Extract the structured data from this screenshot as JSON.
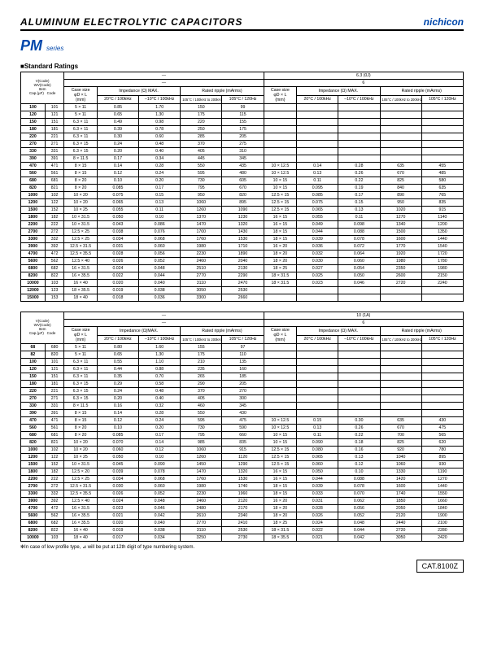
{
  "header": {
    "title": "ALUMINUM  ELECTROLYTIC  CAPACITORS",
    "brand": "nichicon",
    "series": "PM",
    "series_suffix": "series"
  },
  "section_title": "■Standard Ratings",
  "footnote": "✻In case of low profile type, ⊿ will be put at 12th digit of type numbering system.",
  "catnum": "CAT.8100Z",
  "col_headers": {
    "diag": [
      "V(Code)",
      "WV(Code)",
      "Item",
      "Cap.(µF)",
      "Code"
    ],
    "case": "Case size\nφD × L\n(mm)",
    "imp": "Impedance (Ω) MAX.",
    "imp2": "Impedance (Ω)MAX.",
    "rip": "Rated ripple (mArms)",
    "t20": "20°C / 100kHz",
    "tm10": "–10°C / 100kHz",
    "rip1": "105°C / 100kHz to 200kHz",
    "rip2": "105°C / 120Hz",
    "voltage1": "6.3 (0J)",
    "voltage2": "10 (1A)",
    "dash": "—",
    "six": "6"
  },
  "table1": {
    "rows": [
      {
        "cap": "100",
        "code": "101",
        "case": "5 × 11",
        "a1": "0.85",
        "a2": "1.70",
        "a3": "150",
        "a4": "99",
        "case2": "",
        "b1": "",
        "b2": "",
        "b3": "",
        "b4": ""
      },
      {
        "cap": "120",
        "code": "121",
        "case": "5 × 11",
        "a1": "0.65",
        "a2": "1.30",
        "a3": "175",
        "a4": "115",
        "case2": "",
        "b1": "",
        "b2": "",
        "b3": "",
        "b4": ""
      },
      {
        "cap": "150",
        "code": "151",
        "case": "6.3 × 11",
        "a1": "0.49",
        "a2": "0.98",
        "a3": "220",
        "a4": "155",
        "case2": "",
        "b1": "",
        "b2": "",
        "b3": "",
        "b4": ""
      },
      {
        "cap": "180",
        "code": "181",
        "case": "6.3 × 11",
        "a1": "0.39",
        "a2": "0.78",
        "a3": "250",
        "a4": "175",
        "case2": "",
        "b1": "",
        "b2": "",
        "b3": "",
        "b4": ""
      },
      {
        "cap": "220",
        "code": "221",
        "case": "6.3 × 11",
        "a1": "0.30",
        "a2": "0.60",
        "a3": "285",
        "a4": "205",
        "case2": "",
        "b1": "",
        "b2": "",
        "b3": "",
        "b4": ""
      },
      {
        "cap": "270",
        "code": "271",
        "case": "6.3 × 15",
        "a1": "0.24",
        "a2": "0.48",
        "a3": "370",
        "a4": "275",
        "case2": "",
        "b1": "",
        "b2": "",
        "b3": "",
        "b4": ""
      },
      {
        "cap": "330",
        "code": "331",
        "case": "6.3 × 15",
        "a1": "0.20",
        "a2": "0.40",
        "a3": "405",
        "a4": "310",
        "case2": "",
        "b1": "",
        "b2": "",
        "b3": "",
        "b4": ""
      },
      {
        "cap": "390",
        "code": "391",
        "case": "8 × 11.5",
        "a1": "0.17",
        "a2": "0.34",
        "a3": "445",
        "a4": "345",
        "case2": "",
        "b1": "",
        "b2": "",
        "b3": "",
        "b4": ""
      },
      {
        "cap": "470",
        "code": "471",
        "case": "8 × 15",
        "a1": "0.14",
        "a2": "0.28",
        "a3": "550",
        "a4": "435",
        "case2": "10 × 12.5",
        "b1": "0.14",
        "b2": "0.28",
        "b3": "635",
        "b4": "455"
      },
      {
        "cap": "560",
        "code": "561",
        "case": "8 × 15",
        "a1": "0.12",
        "a2": "0.24",
        "a3": "595",
        "a4": "480",
        "case2": "10 × 12.5",
        "b1": "0.13",
        "b2": "0.26",
        "b3": "670",
        "b4": "485"
      },
      {
        "cap": "680",
        "code": "681",
        "case": "8 × 20",
        "a1": "0.10",
        "a2": "0.20",
        "a3": "730",
        "a4": "605",
        "case2": "10 × 15",
        "b1": "0.11",
        "b2": "0.22",
        "b3": "825",
        "b4": "580"
      },
      {
        "cap": "820",
        "code": "821",
        "case": "8 × 20",
        "a1": "0.085",
        "a2": "0.17",
        "a3": "795",
        "a4": "670",
        "case2": "10 × 15",
        "b1": "0.095",
        "b2": "0.19",
        "b3": "840",
        "b4": "635"
      },
      {
        "cap": "1000",
        "code": "102",
        "case": "10 × 20",
        "a1": "0.075",
        "a2": "0.15",
        "a3": "950",
        "a4": "820",
        "case2": "12.5 × 15",
        "b1": "0.085",
        "b2": "0.17",
        "b3": "890",
        "b4": "765"
      },
      {
        "cap": "1200",
        "code": "122",
        "case": "10 × 20",
        "a1": "0.065",
        "a2": "0.13",
        "a3": "1060",
        "a4": "895",
        "case2": "12.5 × 15",
        "b1": "0.075",
        "b2": "0.15",
        "b3": "950",
        "b4": "835"
      },
      {
        "cap": "1500",
        "code": "152",
        "case": "10 × 25",
        "a1": "0.055",
        "a2": "0.11",
        "a3": "1260",
        "a4": "1090",
        "case2": "12.5 × 15",
        "b1": "0.065",
        "b2": "0.13",
        "b3": "1020",
        "b4": "915"
      },
      {
        "cap": "1800",
        "code": "182",
        "case": "10 × 31.5",
        "a1": "0.050",
        "a2": "0.10",
        "a3": "1370",
        "a4": "1230",
        "case2": "16 × 15",
        "b1": "0.055",
        "b2": "0.11",
        "b3": "1270",
        "b4": "1140"
      },
      {
        "cap": "2200",
        "code": "222",
        "case": "10 × 31.5",
        "a1": "0.043",
        "a2": "0.086",
        "a3": "1470",
        "a4": "1320",
        "case2": "16 × 15",
        "b1": "0.049",
        "b2": "0.098",
        "b3": "1340",
        "b4": "1200"
      },
      {
        "cap": "2700",
        "code": "272",
        "case": "12.5 × 25",
        "a1": "0.038",
        "a2": "0.076",
        "a3": "1700",
        "a4": "1430",
        "case2": "18 × 15",
        "b1": "0.044",
        "b2": "0.088",
        "b3": "1500",
        "b4": "1350"
      },
      {
        "cap": "3300",
        "code": "332",
        "case": "12.5 × 25",
        "a1": "0.034",
        "a2": "0.068",
        "a3": "1760",
        "a4": "1530",
        "case2": "18 × 15",
        "b1": "0.039",
        "b2": "0.078",
        "b3": "1600",
        "b4": "1440"
      },
      {
        "cap": "3900",
        "code": "392",
        "case": "12.5 × 31.5",
        "a1": "0.031",
        "a2": "0.060",
        "a3": "1980",
        "a4": "1710",
        "case2": "16 × 20",
        "b1": "0.036",
        "b2": "0.072",
        "b3": "1770",
        "b4": "1540"
      },
      {
        "cap": "4700",
        "code": "472",
        "case": "12.5 × 35.5",
        "a1": "0.028",
        "a2": "0.056",
        "a3": "2230",
        "a4": "1890",
        "case2": "18 × 20",
        "b1": "0.032",
        "b2": "0.064",
        "b3": "1920",
        "b4": "1720"
      },
      {
        "cap": "5600",
        "code": "562",
        "case": "12.5 × 40",
        "a1": "0.026",
        "a2": "0.052",
        "a3": "2460",
        "a4": "2040",
        "case2": "18 × 20",
        "b1": "0.030",
        "b2": "0.060",
        "b3": "1980",
        "b4": "1780"
      },
      {
        "cap": "6800",
        "code": "682",
        "case": "16 × 31.5",
        "a1": "0.024",
        "a2": "0.048",
        "a3": "2510",
        "a4": "2130",
        "case2": "18 × 25",
        "b1": "0.027",
        "b2": "0.054",
        "b3": "2350",
        "b4": "1980"
      },
      {
        "cap": "8200",
        "code": "822",
        "case": "16 × 35.5",
        "a1": "0.022",
        "a2": "0.044",
        "a3": "2770",
        "a4": "2290",
        "case2": "18 × 31.5",
        "b1": "0.025",
        "b2": "0.050",
        "b3": "2600",
        "b4": "2150"
      },
      {
        "cap": "10000",
        "code": "103",
        "case": "16 × 40",
        "a1": "0.020",
        "a2": "0.040",
        "a3": "3110",
        "a4": "2470",
        "case2": "18 × 31.5",
        "b1": "0.023",
        "b2": "0.046",
        "b3": "2720",
        "b4": "2240"
      },
      {
        "cap": "12000",
        "code": "123",
        "case": "18 × 35.5",
        "a1": "0.019",
        "a2": "0.038",
        "a3": "3050",
        "a4": "2530",
        "case2": "",
        "b1": "",
        "b2": "",
        "b3": "",
        "b4": ""
      },
      {
        "cap": "15000",
        "code": "153",
        "case": "18 × 40",
        "a1": "0.018",
        "a2": "0.036",
        "a3": "3300",
        "a4": "2660",
        "case2": "",
        "b1": "",
        "b2": "",
        "b3": "",
        "b4": ""
      }
    ]
  },
  "table2": {
    "rows": [
      {
        "cap": "68",
        "code": "680",
        "case": "5 × 11",
        "a1": "0.80",
        "a2": "1.60",
        "a3": "155",
        "a4": "97",
        "case2": "",
        "b1": "",
        "b2": "",
        "b3": "",
        "b4": ""
      },
      {
        "cap": "82",
        "code": "820",
        "case": "5 × 11",
        "a1": "0.65",
        "a2": "1.30",
        "a3": "175",
        "a4": "110",
        "case2": "",
        "b1": "",
        "b2": "",
        "b3": "",
        "b4": ""
      },
      {
        "cap": "100",
        "code": "101",
        "case": "6.3 × 11",
        "a1": "0.55",
        "a2": "1.10",
        "a3": "210",
        "a4": "135",
        "case2": "",
        "b1": "",
        "b2": "",
        "b3": "",
        "b4": ""
      },
      {
        "cap": "120",
        "code": "121",
        "case": "6.3 × 11",
        "a1": "0.44",
        "a2": "0.88",
        "a3": "235",
        "a4": "160",
        "case2": "",
        "b1": "",
        "b2": "",
        "b3": "",
        "b4": ""
      },
      {
        "cap": "150",
        "code": "151",
        "case": "6.3 × 11",
        "a1": "0.35",
        "a2": "0.70",
        "a3": "265",
        "a4": "185",
        "case2": "",
        "b1": "",
        "b2": "",
        "b3": "",
        "b4": ""
      },
      {
        "cap": "180",
        "code": "181",
        "case": "6.3 × 15",
        "a1": "0.29",
        "a2": "0.58",
        "a3": "290",
        "a4": "205",
        "case2": "",
        "b1": "",
        "b2": "",
        "b3": "",
        "b4": ""
      },
      {
        "cap": "220",
        "code": "221",
        "case": "6.3 × 15",
        "a1": "0.24",
        "a2": "0.48",
        "a3": "370",
        "a4": "270",
        "case2": "",
        "b1": "",
        "b2": "",
        "b3": "",
        "b4": ""
      },
      {
        "cap": "270",
        "code": "271",
        "case": "6.3 × 15",
        "a1": "0.20",
        "a2": "0.40",
        "a3": "405",
        "a4": "300",
        "case2": "",
        "b1": "",
        "b2": "",
        "b3": "",
        "b4": ""
      },
      {
        "cap": "330",
        "code": "331",
        "case": "8 × 11.5",
        "a1": "0.16",
        "a2": "0.32",
        "a3": "460",
        "a4": "345",
        "case2": "",
        "b1": "",
        "b2": "",
        "b3": "",
        "b4": ""
      },
      {
        "cap": "390",
        "code": "391",
        "case": "8 × 15",
        "a1": "0.14",
        "a2": "0.28",
        "a3": "550",
        "a4": "430",
        "case2": "",
        "b1": "",
        "b2": "",
        "b3": "",
        "b4": ""
      },
      {
        "cap": "470",
        "code": "471",
        "case": "8 × 15",
        "a1": "0.12",
        "a2": "0.24",
        "a3": "595",
        "a4": "475",
        "case2": "10 × 12.5",
        "b1": "0.15",
        "b2": "0.30",
        "b3": "635",
        "b4": "430"
      },
      {
        "cap": "560",
        "code": "561",
        "case": "8 × 20",
        "a1": "0.10",
        "a2": "0.20",
        "a3": "730",
        "a4": "590",
        "case2": "10 × 12.5",
        "b1": "0.13",
        "b2": "0.26",
        "b3": "670",
        "b4": "475"
      },
      {
        "cap": "680",
        "code": "681",
        "case": "8 × 20",
        "a1": "0.085",
        "a2": "0.17",
        "a3": "795",
        "a4": "660",
        "case2": "10 × 15",
        "b1": "0.11",
        "b2": "0.22",
        "b3": "700",
        "b4": "565"
      },
      {
        "cap": "820",
        "code": "821",
        "case": "10 × 20",
        "a1": "0.070",
        "a2": "0.14",
        "a3": "985",
        "a4": "835",
        "case2": "10 × 15",
        "b1": "0.090",
        "b2": "0.18",
        "b3": "825",
        "b4": "620"
      },
      {
        "cap": "1000",
        "code": "102",
        "case": "10 × 20",
        "a1": "0.060",
        "a2": "0.12",
        "a3": "1060",
        "a4": "915",
        "case2": "12.5 × 15",
        "b1": "0.080",
        "b2": "0.16",
        "b3": "920",
        "b4": "780"
      },
      {
        "cap": "1200",
        "code": "122",
        "case": "10 × 25",
        "a1": "0.050",
        "a2": "0.10",
        "a3": "1260",
        "a4": "1120",
        "case2": "12.5 × 15",
        "b1": "0.065",
        "b2": "0.13",
        "b3": "1040",
        "b4": "895"
      },
      {
        "cap": "1500",
        "code": "152",
        "case": "10 × 31.5",
        "a1": "0.045",
        "a2": "0.090",
        "a3": "1450",
        "a4": "1290",
        "case2": "12.5 × 15",
        "b1": "0.060",
        "b2": "0.12",
        "b3": "1060",
        "b4": "930"
      },
      {
        "cap": "1800",
        "code": "182",
        "case": "12.5 × 20",
        "a1": "0.039",
        "a2": "0.078",
        "a3": "1470",
        "a4": "1320",
        "case2": "16 × 15",
        "b1": "0.050",
        "b2": "0.10",
        "b3": "1330",
        "b4": "1190"
      },
      {
        "cap": "2200",
        "code": "222",
        "case": "12.5 × 25",
        "a1": "0.034",
        "a2": "0.068",
        "a3": "1760",
        "a4": "1530",
        "case2": "16 × 15",
        "b1": "0.044",
        "b2": "0.088",
        "b3": "1420",
        "b4": "1270"
      },
      {
        "cap": "2700",
        "code": "272",
        "case": "12.5 × 31.5",
        "a1": "0.030",
        "a2": "0.060",
        "a3": "1980",
        "a4": "1740",
        "case2": "18 × 15",
        "b1": "0.039",
        "b2": "0.078",
        "b3": "1600",
        "b4": "1440"
      },
      {
        "cap": "3300",
        "code": "332",
        "case": "12.5 × 35.5",
        "a1": "0.026",
        "a2": "0.052",
        "a3": "2230",
        "a4": "1960",
        "case2": "18 × 15",
        "b1": "0.033",
        "b2": "0.070",
        "b3": "1740",
        "b4": "1550"
      },
      {
        "cap": "3900",
        "code": "392",
        "case": "12.5 × 40",
        "a1": "0.024",
        "a2": "0.048",
        "a3": "2460",
        "a4": "2120",
        "case2": "16 × 20",
        "b1": "0.031",
        "b2": "0.062",
        "b3": "1850",
        "b4": "1660"
      },
      {
        "cap": "4700",
        "code": "472",
        "case": "16 × 31.5",
        "a1": "0.023",
        "a2": "0.046",
        "a3": "2480",
        "a4": "2170",
        "case2": "18 × 20",
        "b1": "0.028",
        "b2": "0.056",
        "b3": "2050",
        "b4": "1840"
      },
      {
        "cap": "5600",
        "code": "562",
        "case": "16 × 35.5",
        "a1": "0.021",
        "a2": "0.042",
        "a3": "2610",
        "a4": "2340",
        "case2": "18 × 20",
        "b1": "0.026",
        "b2": "0.052",
        "b3": "2120",
        "b4": "1900"
      },
      {
        "cap": "6800",
        "code": "682",
        "case": "16 × 35.5",
        "a1": "0.020",
        "a2": "0.040",
        "a3": "2770",
        "a4": "2410",
        "case2": "18 × 25",
        "b1": "0.024",
        "b2": "0.048",
        "b3": "2440",
        "b4": "2100"
      },
      {
        "cap": "8200",
        "code": "822",
        "case": "16 × 40",
        "a1": "0.019",
        "a2": "0.038",
        "a3": "3110",
        "a4": "2530",
        "case2": "18 × 31.5",
        "b1": "0.022",
        "b2": "0.044",
        "b3": "2720",
        "b4": "2280"
      },
      {
        "cap": "10000",
        "code": "103",
        "case": "18 × 40",
        "a1": "0.017",
        "a2": "0.034",
        "a3": "3250",
        "a4": "2730",
        "case2": "18 × 35.5",
        "b1": "0.021",
        "b2": "0.042",
        "b3": "3050",
        "b4": "2420"
      }
    ]
  }
}
